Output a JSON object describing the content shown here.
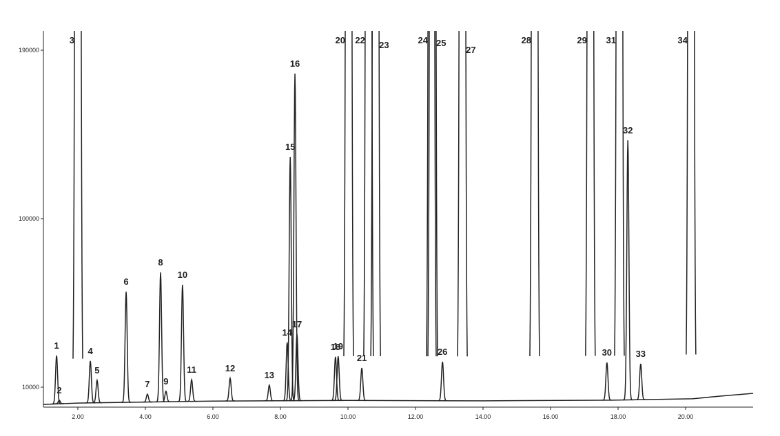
{
  "chart_data": {
    "type": "chromatogram",
    "color": "#222222",
    "xlim": [
      0.98,
      22.0
    ],
    "ylim": [
      -650,
      200300
    ],
    "xticks": [
      {
        "value": 2,
        "label": "2.00"
      },
      {
        "value": 4,
        "label": "4.00"
      },
      {
        "value": 6,
        "label": "6.00"
      },
      {
        "value": 8,
        "label": "8.00"
      },
      {
        "value": 10,
        "label": "10.00"
      },
      {
        "value": 12,
        "label": "12.00"
      },
      {
        "value": 14,
        "label": "14.00"
      },
      {
        "value": 16,
        "label": "16.00"
      },
      {
        "value": 18,
        "label": "18.00"
      },
      {
        "value": 20,
        "label": "20.00"
      }
    ],
    "yticks": [
      10000,
      100000,
      190000
    ],
    "baseline": {
      "x": [
        0.98,
        2.0,
        6.0,
        10.0,
        14.0,
        18.0,
        20.2,
        21.0,
        22.0
      ],
      "values": [
        800,
        1500,
        2600,
        2900,
        2700,
        3100,
        3800,
        5200,
        6700
      ]
    },
    "peaks": [
      {
        "label": "1",
        "time": 1.37,
        "height": 26900
      },
      {
        "label": "2",
        "time": 1.45,
        "height": 3000
      },
      {
        "label": "3",
        "time": 2.0,
        "height": null
      },
      {
        "label": "4",
        "time": 2.37,
        "height": 24000
      },
      {
        "label": "5",
        "time": 2.57,
        "height": 13700
      },
      {
        "label": "6",
        "time": 3.43,
        "height": 61000
      },
      {
        "label": "7",
        "time": 4.06,
        "height": 6300
      },
      {
        "label": "8",
        "time": 4.45,
        "height": 71300
      },
      {
        "label": "9",
        "time": 4.61,
        "height": 7800
      },
      {
        "label": "10",
        "time": 5.1,
        "height": 64700
      },
      {
        "label": "11",
        "time": 5.37,
        "height": 14000
      },
      {
        "label": "12",
        "time": 6.51,
        "height": 14800
      },
      {
        "label": "13",
        "time": 7.67,
        "height": 11100
      },
      {
        "label": "14",
        "time": 8.2,
        "height": 33900
      },
      {
        "label": "15",
        "time": 8.29,
        "height": 133000
      },
      {
        "label": "16",
        "time": 8.43,
        "height": 177500
      },
      {
        "label": "17",
        "time": 8.49,
        "height": 38300
      },
      {
        "label": "18",
        "time": 9.63,
        "height": 26200
      },
      {
        "label": "19",
        "time": 9.71,
        "height": 26500
      },
      {
        "label": "20",
        "time": 10.02,
        "height": null
      },
      {
        "label": "21",
        "time": 10.41,
        "height": 20300
      },
      {
        "label": "22",
        "time": 10.61,
        "height": null
      },
      {
        "label": "23",
        "time": 10.82,
        "height": null
      },
      {
        "label": "24",
        "time": 12.47,
        "height": null
      },
      {
        "label": "25",
        "time": 12.51,
        "height": null
      },
      {
        "label": "26",
        "time": 12.8,
        "height": 23600
      },
      {
        "label": "27",
        "time": 13.39,
        "height": null
      },
      {
        "label": "28",
        "time": 15.53,
        "height": null
      },
      {
        "label": "29",
        "time": 17.18,
        "height": null
      },
      {
        "label": "30",
        "time": 17.67,
        "height": 23200
      },
      {
        "label": "31",
        "time": 18.04,
        "height": null
      },
      {
        "label": "32",
        "time": 18.29,
        "height": 141900
      },
      {
        "label": "33",
        "time": 18.67,
        "height": 22500
      },
      {
        "label": "34",
        "time": 20.16,
        "height": null
      }
    ]
  }
}
